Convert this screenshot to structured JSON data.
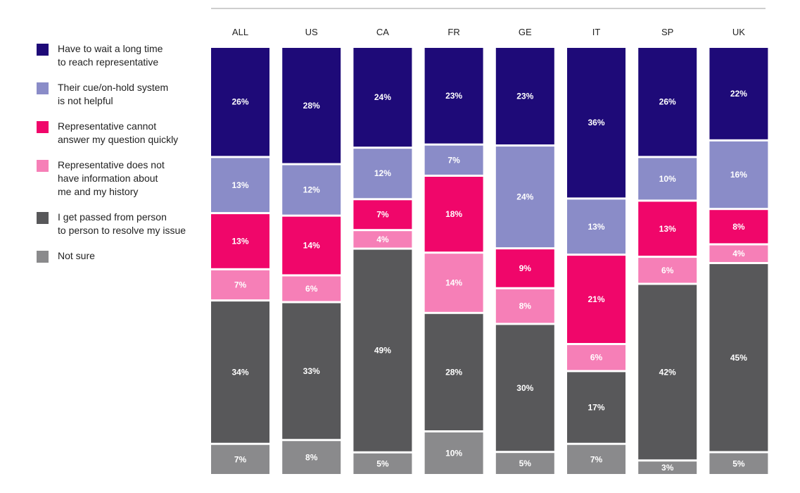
{
  "chart_data": {
    "type": "bar",
    "stacked": true,
    "percent": true,
    "categories": [
      "ALL",
      "US",
      "CA",
      "FR",
      "GE",
      "IT",
      "SP",
      "UK"
    ],
    "series": [
      {
        "name": "Have to wait a long time to reach representative",
        "label_lines": [
          "Have to wait a long time",
          "to reach representative"
        ],
        "color": "#1e0a78",
        "values": [
          26,
          28,
          24,
          23,
          23,
          36,
          26,
          22
        ]
      },
      {
        "name": "Their cue/on-hold system is not helpful",
        "label_lines": [
          "Their cue/on-hold system",
          "is not helpful"
        ],
        "color": "#8a8cc8",
        "values": [
          13,
          12,
          12,
          7,
          24,
          13,
          10,
          16
        ]
      },
      {
        "name": "Representative cannot answer my question quickly",
        "label_lines": [
          "Representative cannot",
          "answer my question quickly"
        ],
        "color": "#f0066a",
        "values": [
          13,
          14,
          7,
          18,
          9,
          21,
          13,
          8
        ]
      },
      {
        "name": "Representative does not have information about me and my history",
        "label_lines": [
          "Representative does not",
          "have information about",
          "me and my history"
        ],
        "color": "#f67fb7",
        "values": [
          7,
          6,
          4,
          14,
          8,
          6,
          6,
          4
        ]
      },
      {
        "name": "I get passed from person to person to resolve my issue",
        "label_lines": [
          "I get passed from person",
          "to person to resolve my issue"
        ],
        "color": "#58585a",
        "values": [
          34,
          33,
          49,
          28,
          30,
          17,
          42,
          45
        ]
      },
      {
        "name": "Not sure",
        "label_lines": [
          "Not sure"
        ],
        "color": "#8a8a8c",
        "values": [
          7,
          8,
          5,
          10,
          5,
          7,
          3,
          5
        ]
      }
    ],
    "ylim": [
      0,
      100
    ],
    "grid": false,
    "legend": "left"
  }
}
